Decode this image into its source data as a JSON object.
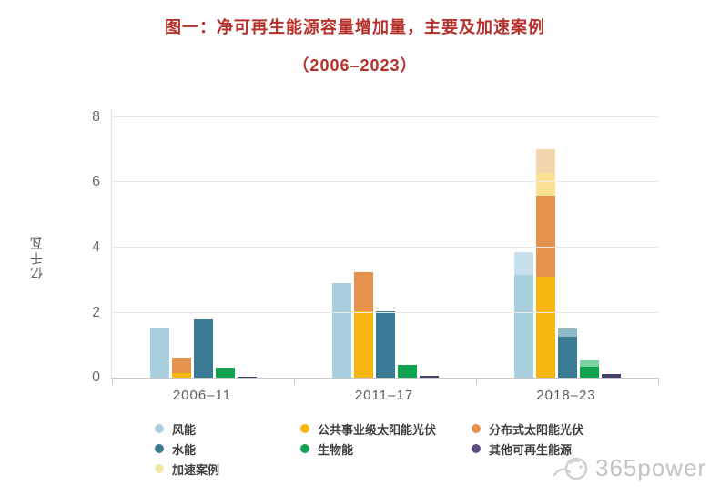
{
  "title": {
    "line1": "图一：净可再生能源容量增加量，主要及加速案例",
    "line2": "（2006–2023）",
    "color": "#b5312b"
  },
  "watermark": {
    "text": "365power"
  },
  "chart_data": {
    "type": "bar",
    "title": "图一：净可再生能源容量增加量，主要及加速案例",
    "subtitle": "（2006–2023）",
    "ylabel": "亿千瓦",
    "ylim": [
      0,
      8
    ],
    "yticks": [
      0,
      2,
      4,
      6,
      8
    ],
    "grid": "horizontal",
    "legend_position": "bottom",
    "categories": [
      "2006–11",
      "2011–17",
      "2018–23"
    ],
    "legend_columns": [
      [
        {
          "label": "风能",
          "slug": "wind",
          "color": "#a9cede"
        },
        {
          "label": "水能",
          "slug": "hydro",
          "color": "#3b7a95"
        },
        {
          "label": "加速案例",
          "slug": "accelerated-case",
          "color": "#efe6a6"
        }
      ],
      [
        {
          "label": "公共事业级太阳能光伏",
          "slug": "utility-solar-pv",
          "color": "#f7b70e"
        },
        {
          "label": "生物能",
          "slug": "bioenergy",
          "color": "#10a34f"
        }
      ],
      [
        {
          "label": "分布式太阳能光伏",
          "slug": "distributed-solar-pv",
          "color": "#e5924c"
        },
        {
          "label": "其他可再生能源",
          "slug": "other-renewables",
          "color": "#5d4f82"
        }
      ]
    ],
    "groups": [
      {
        "category": "2006–11",
        "bars": [
          {
            "slug": "wind",
            "segments": [
              {
                "series": "风能",
                "value": 1.55,
                "color": "#a9cede"
              }
            ]
          },
          {
            "slug": "solar-pv",
            "segments": [
              {
                "series": "公共事业级太阳能光伏",
                "value": 0.15,
                "color": "#f7b70e"
              },
              {
                "series": "分布式太阳能光伏",
                "value": 0.47,
                "color": "#e5924c"
              }
            ]
          },
          {
            "slug": "hydro",
            "segments": [
              {
                "series": "水能",
                "value": 1.78,
                "color": "#3b7a95"
              }
            ]
          },
          {
            "slug": "bioenergy",
            "segments": [
              {
                "series": "生物能",
                "value": 0.3,
                "color": "#10a34f"
              }
            ]
          },
          {
            "slug": "other-renewables",
            "segments": [
              {
                "series": "其他可再生能源",
                "value": 0.03,
                "color": "#474370"
              }
            ]
          }
        ]
      },
      {
        "category": "2011–17",
        "bars": [
          {
            "slug": "wind",
            "segments": [
              {
                "series": "风能",
                "value": 2.9,
                "color": "#a9cede"
              }
            ]
          },
          {
            "slug": "solar-pv",
            "segments": [
              {
                "series": "公共事业级太阳能光伏",
                "value": 2.05,
                "color": "#f7b70e"
              },
              {
                "series": "分布式太阳能光伏",
                "value": 1.2,
                "color": "#e5924c"
              }
            ]
          },
          {
            "slug": "hydro",
            "segments": [
              {
                "series": "水能",
                "value": 2.05,
                "color": "#3b7a95"
              }
            ]
          },
          {
            "slug": "bioenergy",
            "segments": [
              {
                "series": "生物能",
                "value": 0.38,
                "color": "#10a34f"
              }
            ]
          },
          {
            "slug": "other-renewables",
            "segments": [
              {
                "series": "其他可再生能源",
                "value": 0.06,
                "color": "#474370"
              }
            ]
          }
        ]
      },
      {
        "category": "2018–23",
        "bars": [
          {
            "slug": "wind",
            "segments": [
              {
                "series": "风能",
                "value": 3.15,
                "color": "#a9cede"
              },
              {
                "series": "加速案例",
                "applies_to": "风能",
                "value": 0.72,
                "color": "#c8dfec"
              }
            ]
          },
          {
            "slug": "solar-pv",
            "segments": [
              {
                "series": "公共事业级太阳能光伏",
                "value": 3.1,
                "color": "#f7b70e"
              },
              {
                "series": "分布式太阳能光伏",
                "value": 2.5,
                "color": "#e5924c"
              },
              {
                "series": "加速案例",
                "applies_to": "公共事业级太阳能光伏",
                "value": 0.7,
                "color": "#fbe193"
              },
              {
                "series": "加速案例",
                "applies_to": "分布式太阳能光伏",
                "value": 0.72,
                "color": "#f4d6ae"
              }
            ]
          },
          {
            "slug": "hydro",
            "segments": [
              {
                "series": "水能",
                "value": 1.25,
                "color": "#3b7a95"
              },
              {
                "series": "加速案例",
                "applies_to": "水能",
                "value": 0.25,
                "color": "#8fb8c8"
              }
            ]
          },
          {
            "slug": "bioenergy",
            "segments": [
              {
                "series": "生物能",
                "value": 0.33,
                "color": "#10a34f"
              },
              {
                "series": "加速案例",
                "applies_to": "生物能",
                "value": 0.2,
                "color": "#7bd2a0"
              }
            ]
          },
          {
            "slug": "other-renewables",
            "segments": [
              {
                "series": "其他可再生能源",
                "value": 0.1,
                "color": "#474370"
              }
            ]
          }
        ]
      }
    ]
  }
}
